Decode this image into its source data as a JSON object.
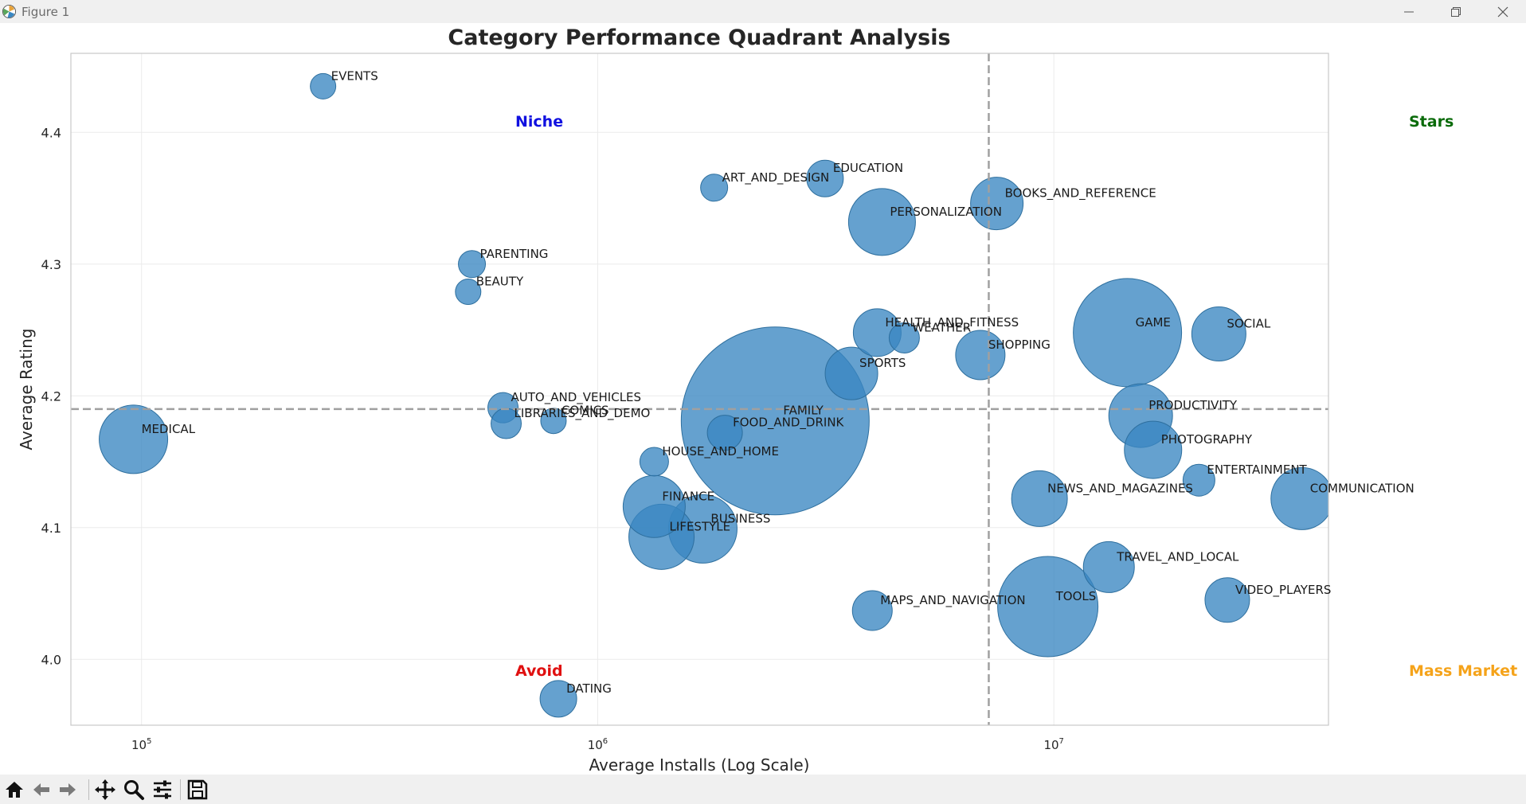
{
  "window": {
    "title": "Figure 1"
  },
  "toolbar": {
    "buttons": [
      "home-icon",
      "back-icon",
      "forward-icon",
      "pan-icon",
      "zoom-icon",
      "configure-icon",
      "save-icon"
    ]
  },
  "colors": {
    "bubble": "#3a87c2",
    "bubble_edge": "#2e6f9e",
    "threshold": "#a0a0a0",
    "stars": "#0a6b0a",
    "niche": "#1010e0",
    "mass_market": "#f5a31a",
    "avoid": "#e01010"
  },
  "quadrant_labels": {
    "stars": "Stars",
    "niche": "Niche",
    "mass_market": "Mass Market",
    "avoid": "Avoid"
  },
  "chart_data": {
    "type": "scatter",
    "title": "Category Performance Quadrant Analysis",
    "xlabel": "Average Installs (Log Scale)",
    "ylabel": "Average Rating",
    "xscale": "log",
    "xlim": [
      70000,
      40000000
    ],
    "ylim": [
      3.95,
      4.46
    ],
    "xticks": [
      100000,
      1000000,
      10000000
    ],
    "xtick_labels": [
      {
        "base": "10",
        "exp": "5"
      },
      {
        "base": "10",
        "exp": "6"
      },
      {
        "base": "10",
        "exp": "7"
      }
    ],
    "yticks": [
      4.0,
      4.1,
      4.2,
      4.3,
      4.4
    ],
    "ytick_labels": [
      "4.0",
      "4.1",
      "4.2",
      "4.3",
      "4.4"
    ],
    "thresholds": {
      "x": 7200000,
      "y": 4.19
    },
    "grid": true,
    "points": [
      {
        "label": "EVENTS",
        "x": 250000,
        "y": 4.435,
        "size": 16
      },
      {
        "label": "ART_AND_DESIGN",
        "x": 1800000,
        "y": 4.358,
        "size": 17
      },
      {
        "label": "EDUCATION",
        "x": 3150000,
        "y": 4.365,
        "size": 23
      },
      {
        "label": "PERSONALIZATION",
        "x": 4200000,
        "y": 4.332,
        "size": 42
      },
      {
        "label": "BOOKS_AND_REFERENCE",
        "x": 7500000,
        "y": 4.346,
        "size": 33
      },
      {
        "label": "PARENTING",
        "x": 530000,
        "y": 4.3,
        "size": 17
      },
      {
        "label": "BEAUTY",
        "x": 520000,
        "y": 4.279,
        "size": 16
      },
      {
        "label": "HEALTH_AND_FITNESS",
        "x": 4100000,
        "y": 4.248,
        "size": 30
      },
      {
        "label": "WEATHER",
        "x": 4700000,
        "y": 4.244,
        "size": 19
      },
      {
        "label": "SHOPPING",
        "x": 6900000,
        "y": 4.231,
        "size": 31
      },
      {
        "label": "GAME",
        "x": 14500000,
        "y": 4.248,
        "size": 68
      },
      {
        "label": "SOCIAL",
        "x": 23000000,
        "y": 4.247,
        "size": 34
      },
      {
        "label": "SPORTS",
        "x": 3600000,
        "y": 4.217,
        "size": 33
      },
      {
        "label": "AUTO_AND_VEHICLES",
        "x": 620000,
        "y": 4.191,
        "size": 19
      },
      {
        "label": "LIBRARIES_AND_DEMO",
        "x": 630000,
        "y": 4.179,
        "size": 19
      },
      {
        "label": "COMICS",
        "x": 800000,
        "y": 4.181,
        "size": 16
      },
      {
        "label": "MEDICAL",
        "x": 96000,
        "y": 4.167,
        "size": 43
      },
      {
        "label": "FAMILY",
        "x": 2450000,
        "y": 4.181,
        "size": 118
      },
      {
        "label": "FOOD_AND_DRINK",
        "x": 1900000,
        "y": 4.172,
        "size": 22
      },
      {
        "label": "PRODUCTIVITY",
        "x": 15500000,
        "y": 4.185,
        "size": 40
      },
      {
        "label": "PHOTOGRAPHY",
        "x": 16500000,
        "y": 4.159,
        "size": 36
      },
      {
        "label": "HOUSE_AND_HOME",
        "x": 1330000,
        "y": 4.15,
        "size": 18
      },
      {
        "label": "ENTERTAINMENT",
        "x": 20800000,
        "y": 4.136,
        "size": 20
      },
      {
        "label": "NEWS_AND_MAGAZINES",
        "x": 9300000,
        "y": 4.122,
        "size": 35
      },
      {
        "label": "COMMUNICATION",
        "x": 35000000,
        "y": 4.122,
        "size": 39
      },
      {
        "label": "FINANCE",
        "x": 1330000,
        "y": 4.116,
        "size": 39
      },
      {
        "label": "BUSINESS",
        "x": 1700000,
        "y": 4.099,
        "size": 43
      },
      {
        "label": "LIFESTYLE",
        "x": 1380000,
        "y": 4.093,
        "size": 41
      },
      {
        "label": "TRAVEL_AND_LOCAL",
        "x": 13200000,
        "y": 4.07,
        "size": 32
      },
      {
        "label": "VIDEO_PLAYERS",
        "x": 24000000,
        "y": 4.045,
        "size": 28
      },
      {
        "label": "MAPS_AND_NAVIGATION",
        "x": 4000000,
        "y": 4.037,
        "size": 25
      },
      {
        "label": "TOOLS",
        "x": 9700000,
        "y": 4.04,
        "size": 63
      },
      {
        "label": "DATING",
        "x": 820000,
        "y": 3.97,
        "size": 23
      }
    ]
  }
}
